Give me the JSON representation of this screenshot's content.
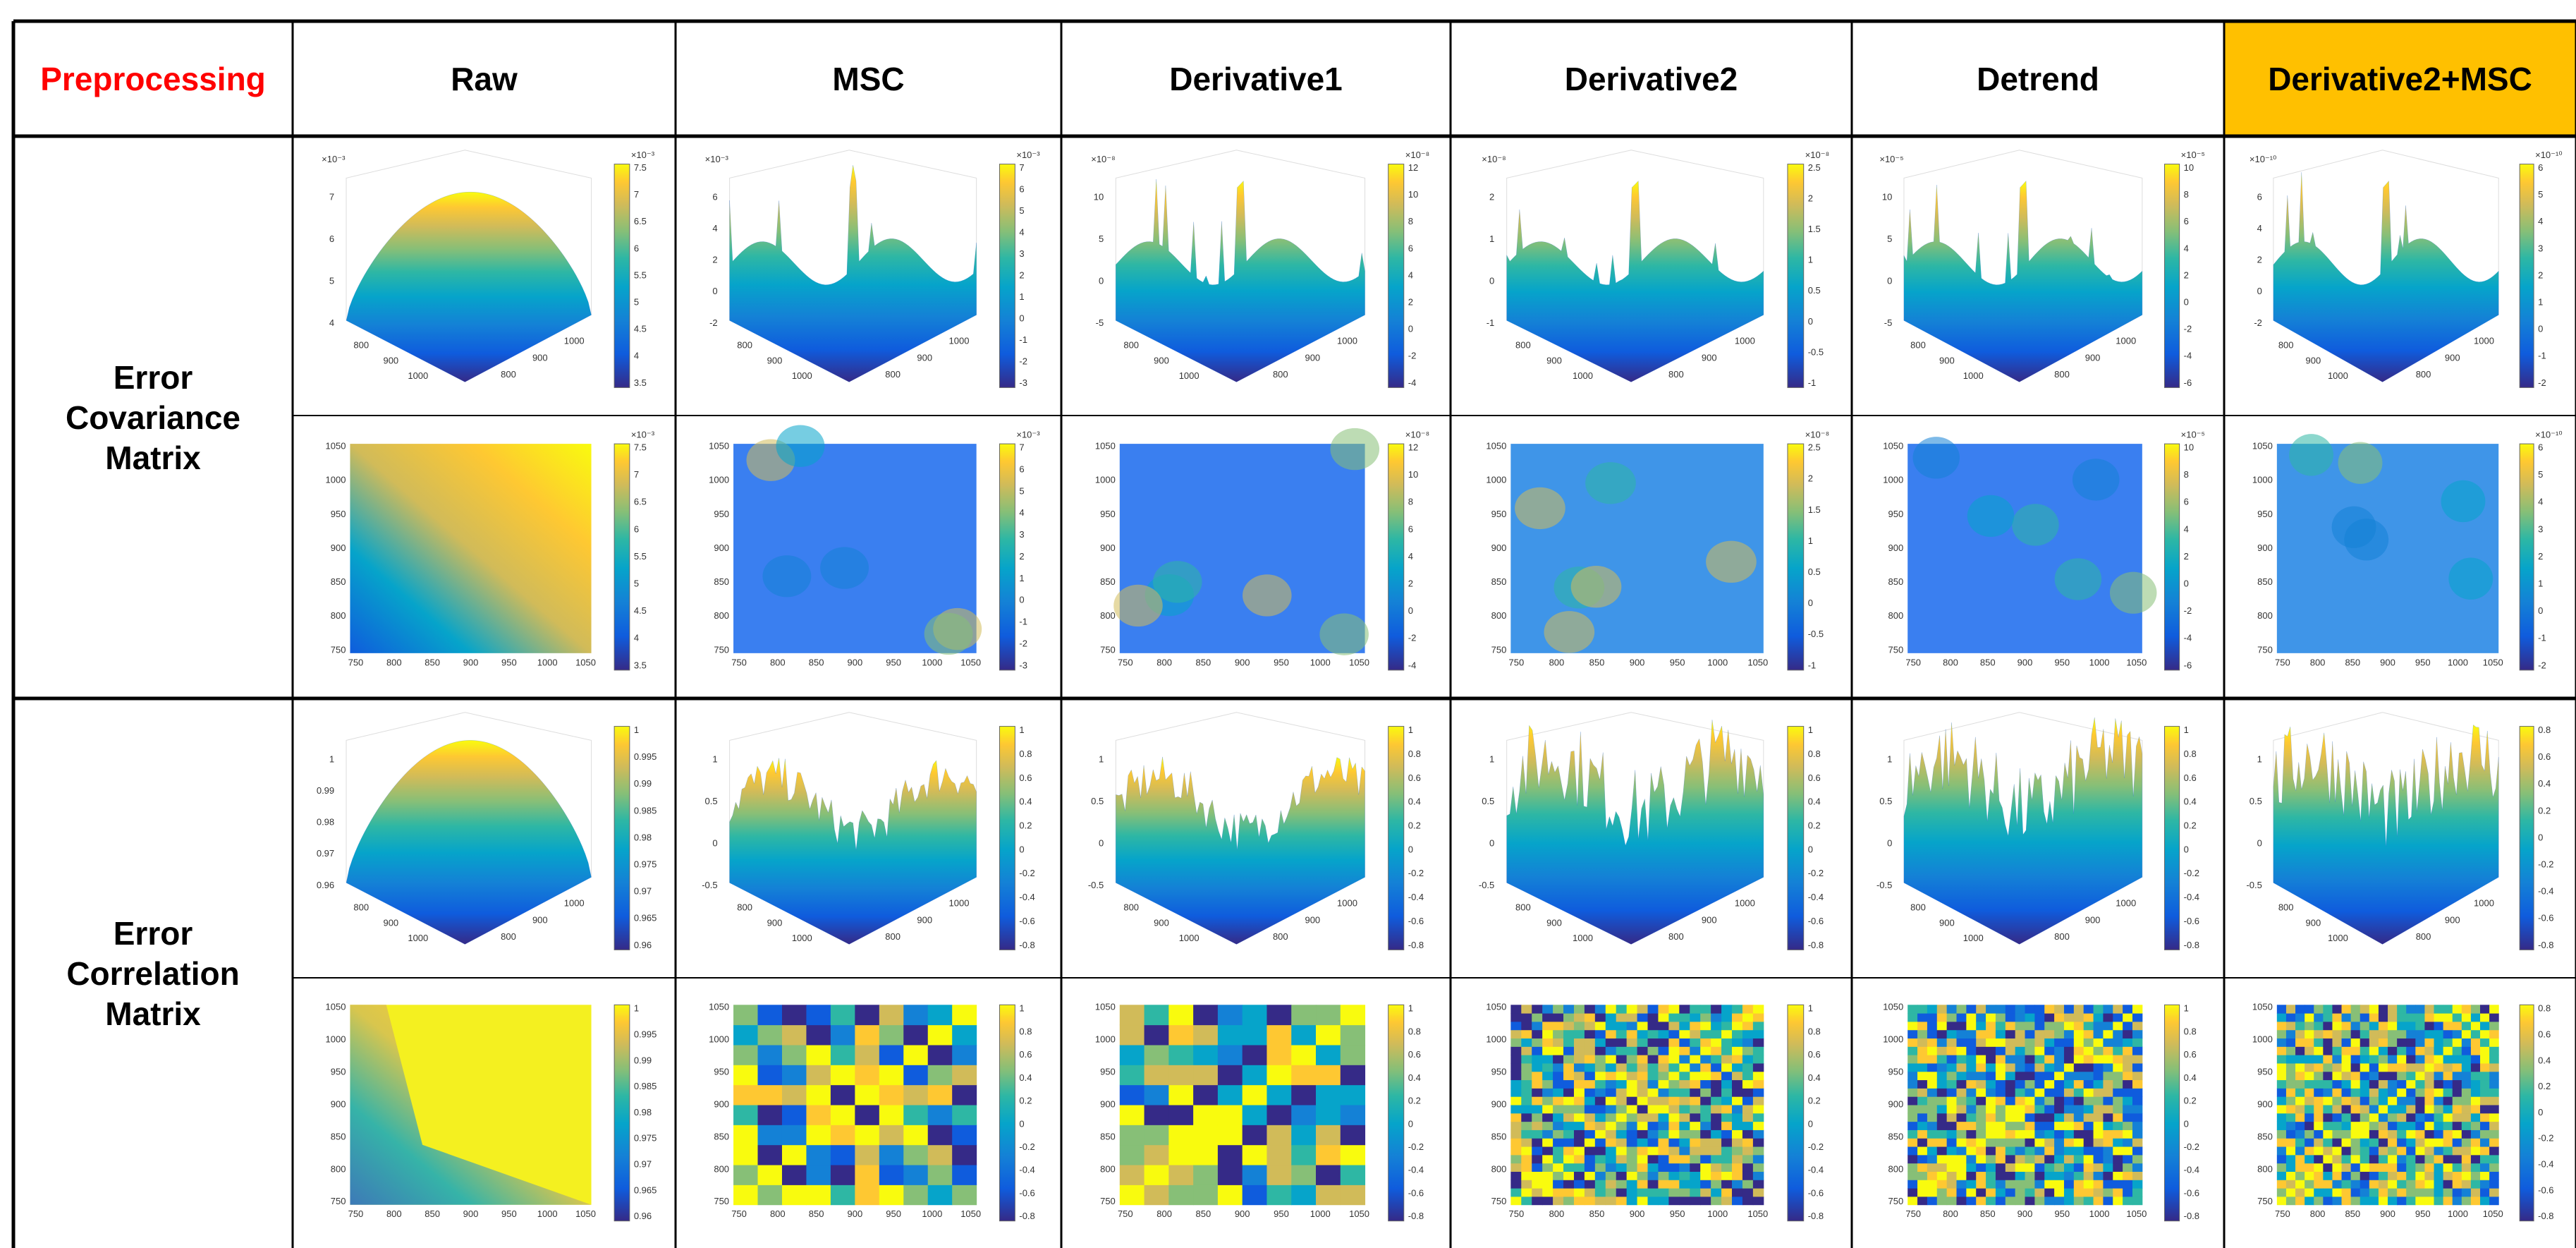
{
  "header": {
    "corner": "Preprocessing",
    "columns": [
      "Raw",
      "MSC",
      "Derivative1",
      "Derivative2",
      "Detrend",
      "Derivative2+MSC"
    ]
  },
  "axes": {
    "surface_xy": [
      "800",
      "900",
      "1000"
    ],
    "heatmap": [
      "750",
      "800",
      "850",
      "900",
      "950",
      "1000",
      "1050"
    ]
  },
  "rows": [
    {
      "label": "Error Covariance Matrix",
      "plots": [
        {
          "exponent": "×10⁻³",
          "zticks": [
            "7",
            "6",
            "5",
            "4"
          ],
          "cbar": [
            "7.5",
            "7",
            "6.5",
            "6",
            "5.5",
            "5",
            "4.5",
            "4",
            "3.5"
          ]
        },
        {
          "exponent": "×10⁻³",
          "zticks": [
            "6",
            "4",
            "2",
            "0",
            "-2"
          ],
          "cbar": [
            "7",
            "6",
            "5",
            "4",
            "3",
            "2",
            "1",
            "0",
            "-1",
            "-2",
            "-3"
          ]
        },
        {
          "exponent": "×10⁻⁸",
          "zticks": [
            "10",
            "5",
            "0",
            "-5"
          ],
          "cbar": [
            "12",
            "10",
            "8",
            "6",
            "4",
            "2",
            "0",
            "-2",
            "-4"
          ]
        },
        {
          "exponent": "×10⁻⁸",
          "zticks": [
            "2",
            "1",
            "0",
            "-1"
          ],
          "cbar": [
            "2.5",
            "2",
            "1.5",
            "1",
            "0.5",
            "0",
            "-0.5",
            "-1"
          ]
        },
        {
          "exponent": "×10⁻⁵",
          "zticks": [
            "10",
            "5",
            "0",
            "-5"
          ],
          "cbar": [
            "10",
            "8",
            "6",
            "4",
            "2",
            "0",
            "-2",
            "-4",
            "-6"
          ]
        },
        {
          "exponent": "×10⁻¹⁰",
          "zticks": [
            "6",
            "4",
            "2",
            "0",
            "-2"
          ],
          "cbar": [
            "6",
            "5",
            "4",
            "3",
            "2",
            "1",
            "0",
            "-1",
            "-2"
          ]
        }
      ]
    },
    {
      "label": "Error Correlation Matrix",
      "plots": [
        {
          "zticks": [
            "1",
            "0.99",
            "0.98",
            "0.97",
            "0.96"
          ],
          "cbar": [
            "1",
            "0.995",
            "0.99",
            "0.985",
            "0.98",
            "0.975",
            "0.97",
            "0.965",
            "0.96"
          ]
        },
        {
          "zticks": [
            "1",
            "0.5",
            "0",
            "-0.5"
          ],
          "cbar": [
            "1",
            "0.8",
            "0.6",
            "0.4",
            "0.2",
            "0",
            "-0.2",
            "-0.4",
            "-0.6",
            "-0.8"
          ]
        },
        {
          "zticks": [
            "1",
            "0.5",
            "0",
            "-0.5"
          ],
          "cbar": [
            "1",
            "0.8",
            "0.6",
            "0.4",
            "0.2",
            "0",
            "-0.2",
            "-0.4",
            "-0.6",
            "-0.8"
          ]
        },
        {
          "zticks": [
            "1",
            "0.5",
            "0",
            "-0.5"
          ],
          "cbar": [
            "1",
            "0.8",
            "0.6",
            "0.4",
            "0.2",
            "0",
            "-0.2",
            "-0.4",
            "-0.6",
            "-0.8"
          ]
        },
        {
          "zticks": [
            "1",
            "0.5",
            "0",
            "-0.5"
          ],
          "cbar": [
            "1",
            "0.8",
            "0.6",
            "0.4",
            "0.2",
            "0",
            "-0.2",
            "-0.4",
            "-0.6",
            "-0.8"
          ]
        },
        {
          "zticks": [
            "1",
            "0.5",
            "0",
            "-0.5"
          ],
          "cbar": [
            "0.8",
            "0.6",
            "0.4",
            "0.2",
            "0",
            "-0.2",
            "-0.4",
            "-0.6",
            "-0.8"
          ]
        }
      ]
    }
  ]
}
